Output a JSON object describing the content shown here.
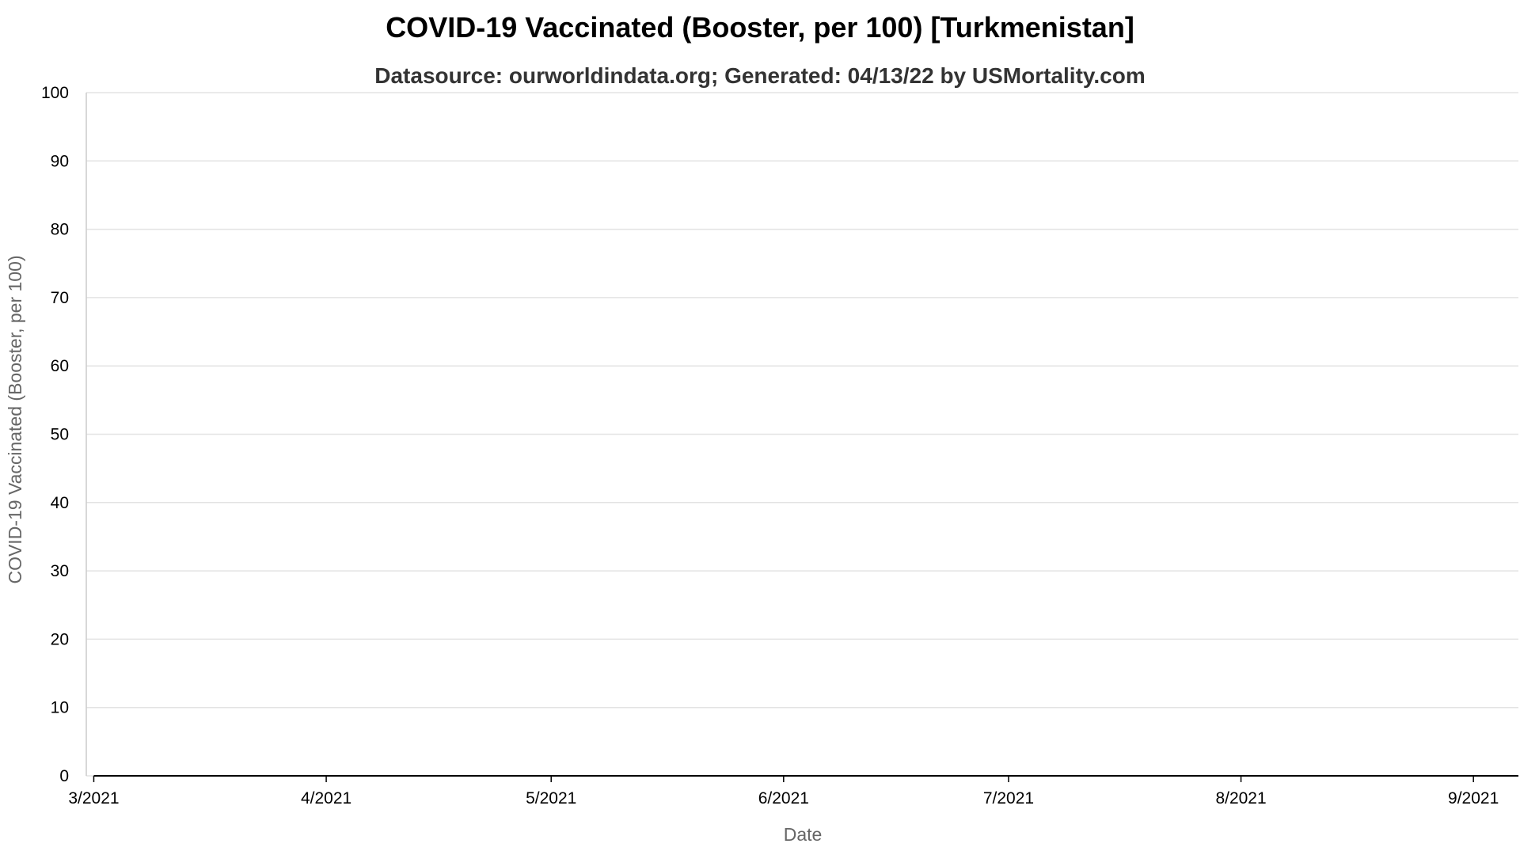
{
  "chart_data": {
    "type": "line",
    "title": "COVID-19 Vaccinated (Booster, per 100) [Turkmenistan]",
    "subtitle": "Datasource: ourworldindata.org; Generated: 04/13/22 by USMortality.com",
    "xlabel": "Date",
    "ylabel": "COVID-19 Vaccinated (Booster, per 100)",
    "ylim": [
      0,
      100
    ],
    "yticks": [
      0,
      10,
      20,
      30,
      40,
      50,
      60,
      70,
      80,
      90,
      100
    ],
    "xlim": [
      "2021-02-28",
      "2021-09-07"
    ],
    "xticks": [
      {
        "date": "2021-03-01",
        "label": "3/2021"
      },
      {
        "date": "2021-04-01",
        "label": "4/2021"
      },
      {
        "date": "2021-05-01",
        "label": "5/2021"
      },
      {
        "date": "2021-06-01",
        "label": "6/2021"
      },
      {
        "date": "2021-07-01",
        "label": "7/2021"
      },
      {
        "date": "2021-08-01",
        "label": "8/2021"
      },
      {
        "date": "2021-09-01",
        "label": "9/2021"
      }
    ],
    "grid": true,
    "series": [
      {
        "color": "#000000",
        "x": [
          "2021-03-01",
          "2021-09-07"
        ],
        "values": [
          0,
          0
        ]
      }
    ]
  }
}
